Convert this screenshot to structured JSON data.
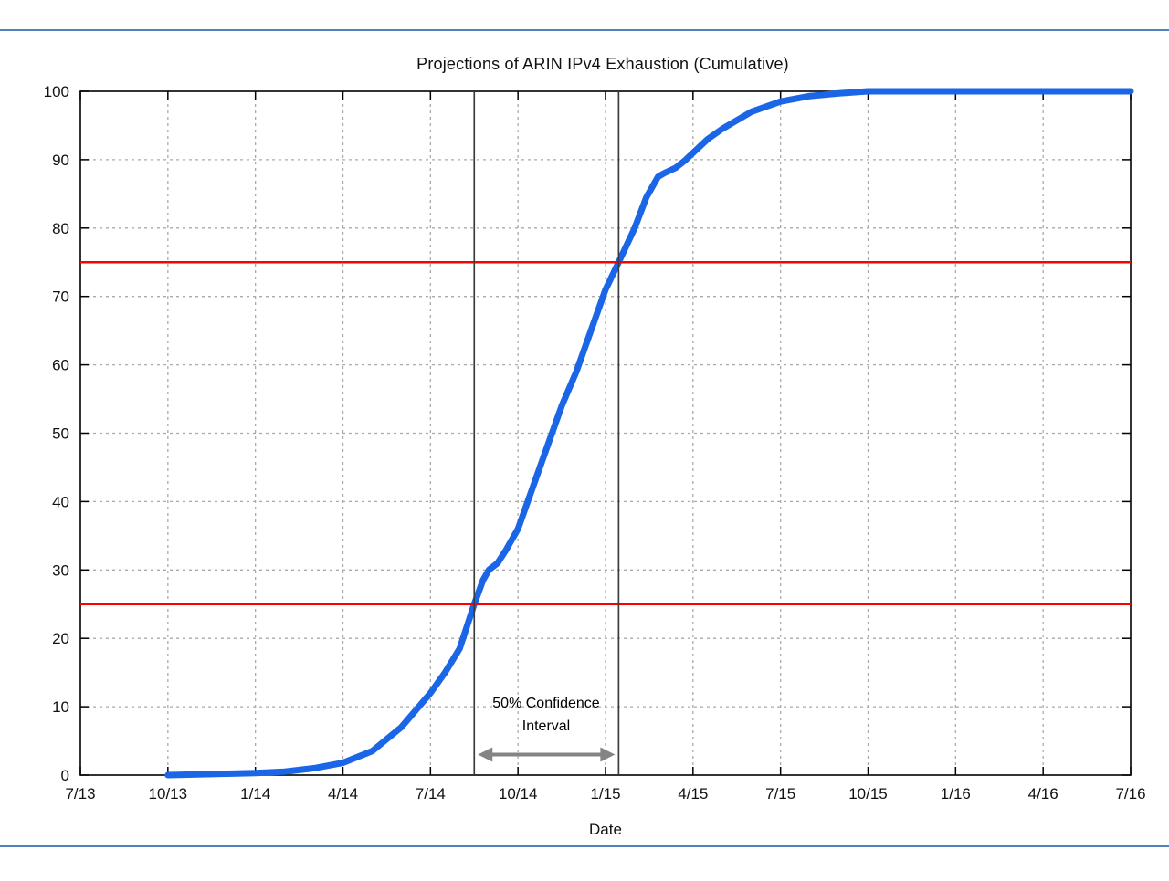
{
  "page": {
    "accent_rule_color": "#4f81bd"
  },
  "chart_data": {
    "type": "line",
    "title": "Projections of ARIN IPv4 Exhaustion (Cumulative)",
    "xlabel": "Date",
    "ylabel": "",
    "xlim_months_after_jul13": [
      0,
      36
    ],
    "ylim": [
      0,
      100
    ],
    "grid": "dashed-both-axes",
    "x_tick_labels": [
      "7/13",
      "10/13",
      "1/14",
      "4/14",
      "7/14",
      "10/14",
      "1/15",
      "4/15",
      "7/15",
      "10/15",
      "1/16",
      "4/16",
      "7/16"
    ],
    "x_tick_months": [
      0,
      3,
      6,
      9,
      12,
      15,
      18,
      21,
      24,
      27,
      30,
      33,
      36
    ],
    "y_tick_labels": [
      "0",
      "10",
      "20",
      "30",
      "40",
      "50",
      "60",
      "70",
      "80",
      "90",
      "100"
    ],
    "y_ticks": [
      0,
      10,
      20,
      30,
      40,
      50,
      60,
      70,
      80,
      90,
      100
    ],
    "series": [
      {
        "name": "cumulative-exhaustion-probability",
        "color": "#1a66e6",
        "width": 7,
        "x": [
          3,
          4,
          5,
          6,
          7,
          8,
          9,
          10,
          11,
          12,
          12.5,
          13,
          13.5,
          13.8,
          14,
          14.3,
          14.6,
          15,
          15.5,
          16,
          16.5,
          17,
          17.5,
          18,
          18.45,
          19,
          19.4,
          19.8,
          20,
          20.4,
          20.7,
          21,
          21.5,
          22,
          23,
          24,
          25,
          26,
          27,
          28,
          36
        ],
        "y": [
          0,
          0.1,
          0.2,
          0.3,
          0.5,
          1,
          1.8,
          3.5,
          7,
          12,
          15,
          18.5,
          25,
          28.5,
          30,
          31,
          33,
          36,
          42,
          48,
          54,
          59,
          65,
          71,
          75,
          80,
          84.5,
          87.5,
          88,
          88.8,
          89.8,
          91,
          93,
          94.5,
          97,
          98.5,
          99.3,
          99.7,
          100,
          100,
          100
        ]
      }
    ],
    "reference_lines_y": [
      {
        "value": 25,
        "color": "#ff0000"
      },
      {
        "value": 75,
        "color": "#ff0000"
      }
    ],
    "confidence_interval": {
      "label_lines": [
        "50% Confidence",
        "Interval"
      ],
      "x_start_months": 13.5,
      "x_end_months": 18.45,
      "start_value_crossing": 25,
      "end_value_crossing": 75,
      "line_color": "#3c3c3c",
      "arrow_color": "#848484",
      "arrow_y_value": 3
    },
    "axis_color": "#000000",
    "grid_color": "#aaaaaa"
  }
}
